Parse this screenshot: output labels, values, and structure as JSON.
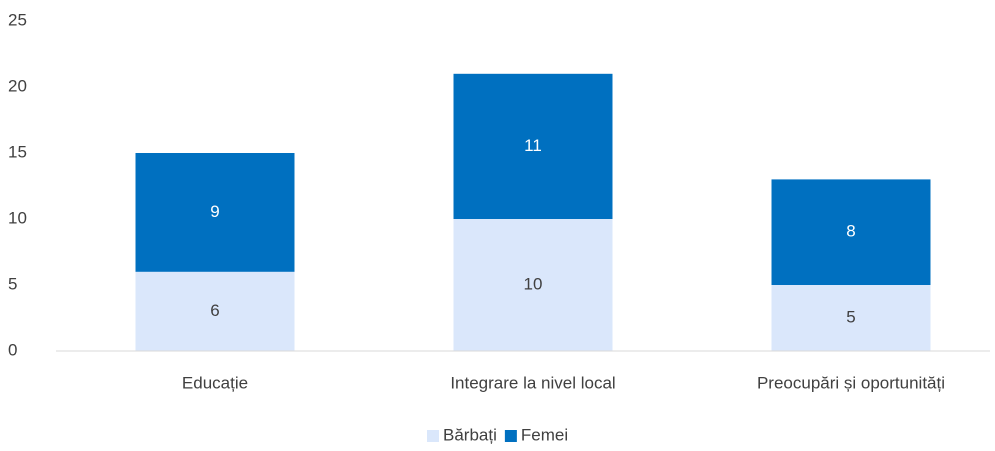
{
  "chart_data": {
    "type": "stacked_bar",
    "categories": [
      "Educație",
      "Integrare la nivel local",
      "Preocupări și oportunități"
    ],
    "series": [
      {
        "name": "Bărbați",
        "color": "#dae7fb",
        "label_color": "#404040",
        "values": [
          6,
          10,
          5
        ]
      },
      {
        "name": "Femei",
        "color": "#0070c0",
        "label_color": "#ffffff",
        "values": [
          9,
          11,
          8
        ]
      }
    ],
    "ylim": [
      0,
      25
    ],
    "yticks": [
      0,
      5,
      10,
      15,
      20,
      25
    ],
    "grid": false,
    "legend": "bottom"
  }
}
